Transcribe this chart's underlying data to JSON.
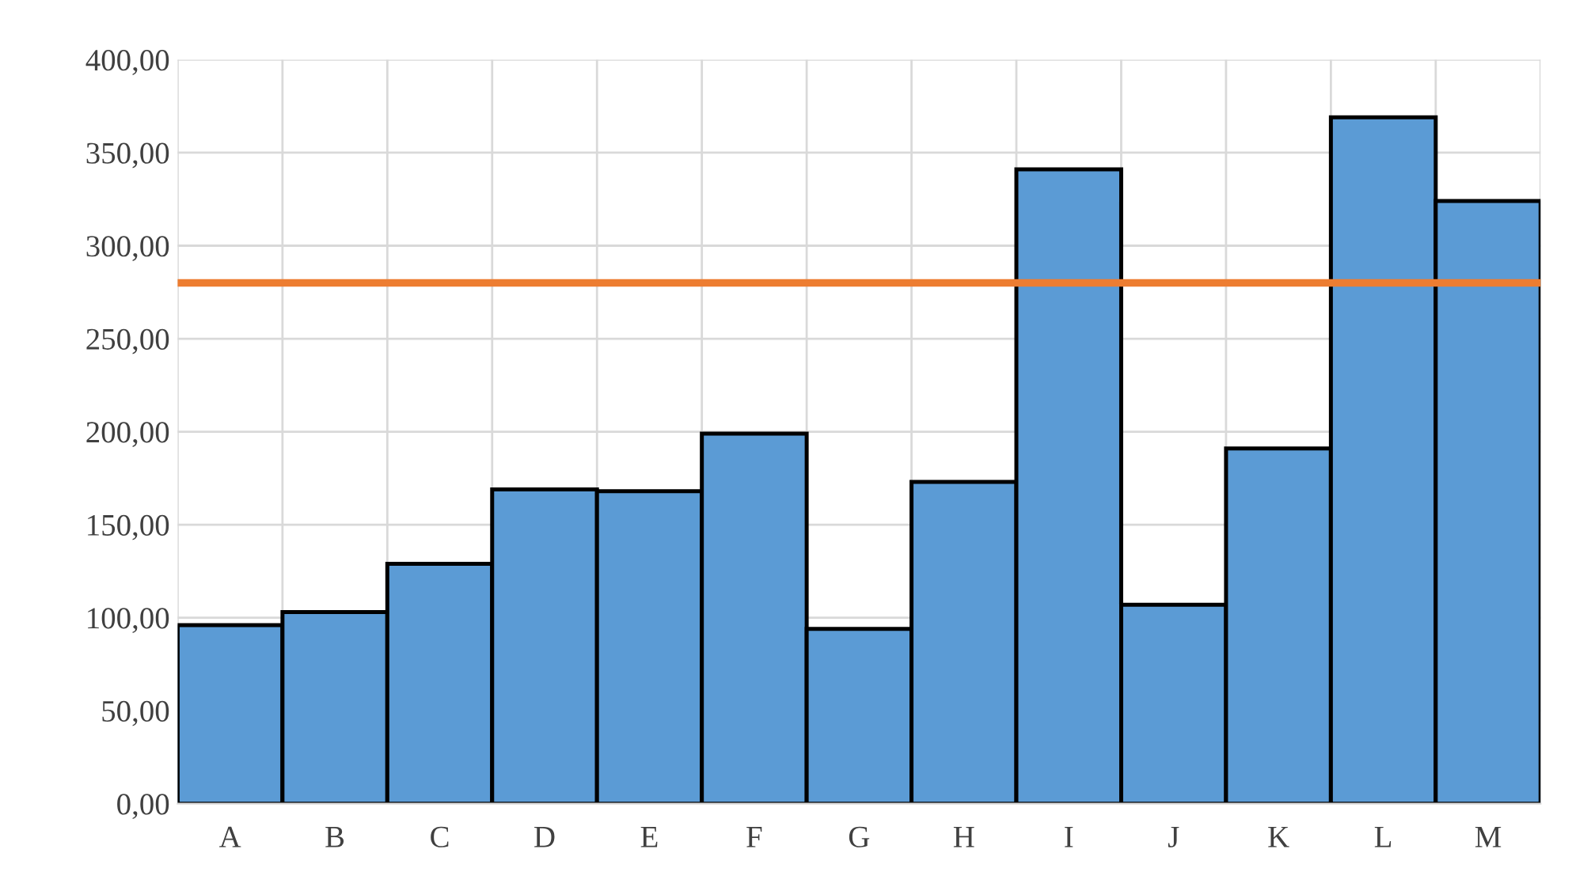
{
  "chart_data": {
    "type": "bar",
    "categories": [
      "A",
      "B",
      "C",
      "D",
      "E",
      "F",
      "G",
      "H",
      "I",
      "J",
      "K",
      "L",
      "M"
    ],
    "values": [
      96,
      103,
      129,
      169,
      168,
      199,
      94,
      173,
      341,
      107,
      191,
      369,
      324
    ],
    "color": "#5b9bd5",
    "ylim": [
      0,
      400
    ],
    "yticks": [
      {
        "value": 0,
        "label": "0,00"
      },
      {
        "value": 50,
        "label": "50,00"
      },
      {
        "value": 100,
        "label": "100,00"
      },
      {
        "value": 150,
        "label": "150,00"
      },
      {
        "value": 200,
        "label": "200,00"
      },
      {
        "value": 250,
        "label": "250,00"
      },
      {
        "value": 300,
        "label": "300,00"
      },
      {
        "value": 350,
        "label": "350,00"
      },
      {
        "value": 400,
        "label": "400,00"
      }
    ],
    "grid": true,
    "ref_lines": [
      {
        "axis": "y",
        "value": 280,
        "color": "#ed7d31"
      }
    ]
  }
}
